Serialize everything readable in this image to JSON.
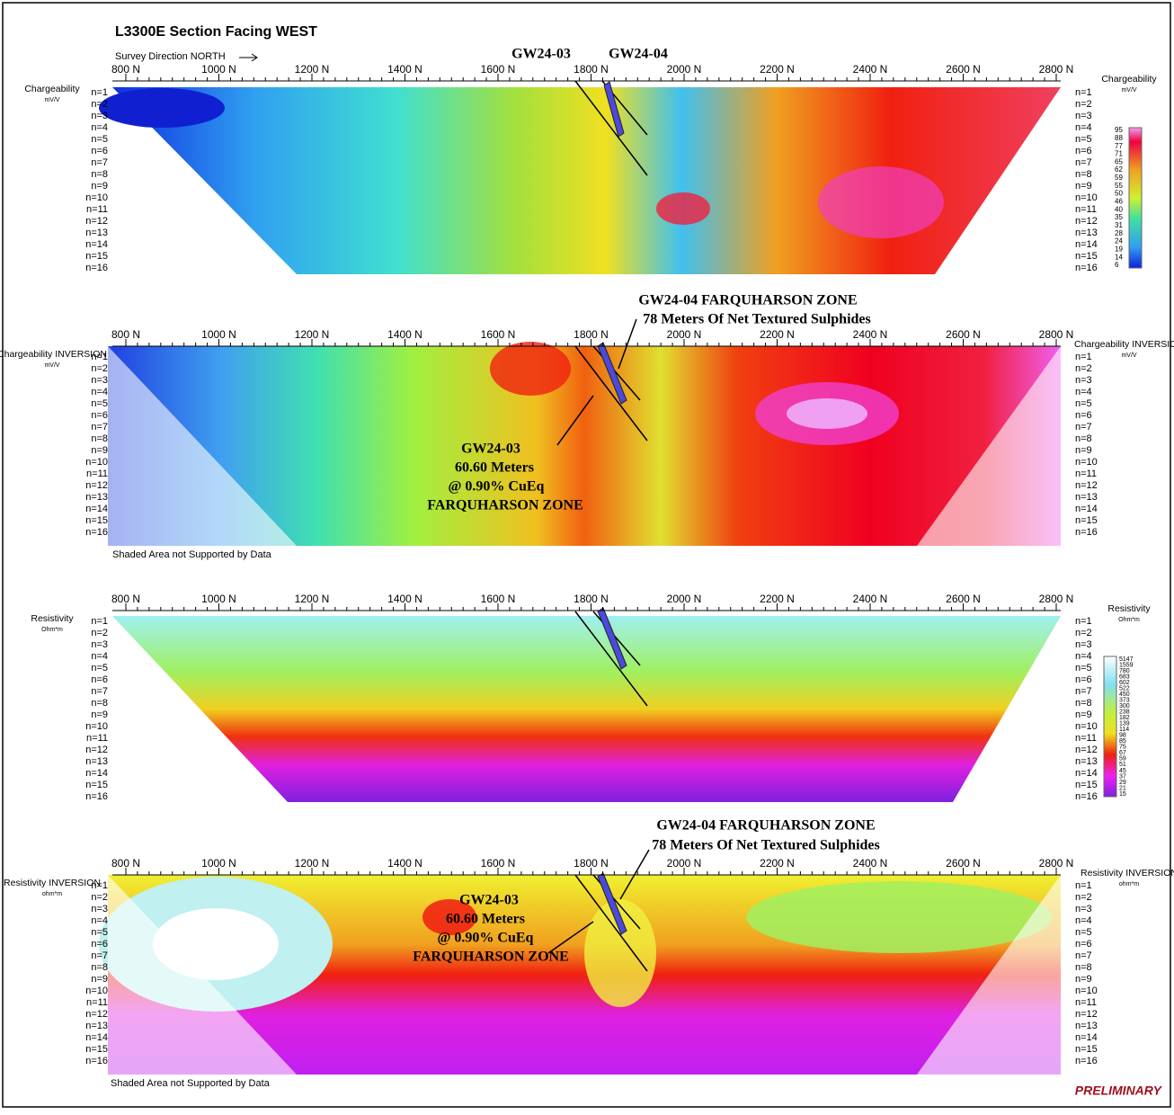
{
  "title": "L3300E Section Facing WEST",
  "survey_direction": "Survey Direction NORTH",
  "preliminary": "PRELIMINARY",
  "stations": [
    {
      "value": 800,
      "label": "800 N"
    },
    {
      "value": 1000,
      "label": "1000 N"
    },
    {
      "value": 1200,
      "label": "1200 N"
    },
    {
      "value": 1400,
      "label": "1400 N"
    },
    {
      "value": 1600,
      "label": "1600 N"
    },
    {
      "value": 1800,
      "label": "1800 N"
    },
    {
      "value": 2000,
      "label": "2000 N"
    },
    {
      "value": 2200,
      "label": "2200 N"
    },
    {
      "value": 2400,
      "label": "2400 N"
    },
    {
      "value": 2600,
      "label": "2600 N"
    },
    {
      "value": 2800,
      "label": "2800 N"
    }
  ],
  "n_levels": [
    "n=1",
    "n=2",
    "n=3",
    "n=4",
    "n=5",
    "n=6",
    "n=7",
    "n=8",
    "n=9",
    "n=10",
    "n=11",
    "n=12",
    "n=13",
    "n=14",
    "n=15",
    "n=16"
  ],
  "panels": [
    {
      "left_label": "Chargeability",
      "left_unit": "mV/V",
      "right_label": "Chargeability",
      "right_unit": "mV/V",
      "wells": [
        "GW24-03",
        "GW24-04"
      ]
    },
    {
      "left_label": "Chargeability INVERSION",
      "left_unit": "mV/V",
      "right_label": "Chargeability INVERSION",
      "right_unit": "mV/V",
      "note": "Shaded Area not Supported by Data",
      "annotations": [
        "GW24-04 FARQUHARSON ZONE",
        "78 Meters Of Net Textured Sulphides",
        "GW24-03",
        "60.60 Meters",
        "@ 0.90% CuEq",
        "FARQUHARSON ZONE"
      ]
    },
    {
      "left_label": "Resistivity",
      "left_unit": "Ohm*m",
      "right_label": "Resistivity",
      "right_unit": "Ohm*m"
    },
    {
      "left_label": "Resistivity INVERSION",
      "left_unit": "ohm*m",
      "right_label": "Resistivity INVERSION",
      "right_unit": "ohm*m",
      "note": "Shaded Area not Supported by Data",
      "annotations": [
        "GW24-04 FARQUHARSON ZONE",
        "78 Meters Of Net Textured Sulphides",
        "GW24-03",
        "60.60 Meters",
        "@ 0.90% CuEq",
        "FARQUHARSON ZONE"
      ]
    }
  ],
  "chargeability_scale": [
    95,
    88,
    77,
    71,
    65,
    62,
    59,
    55,
    50,
    46,
    40,
    35,
    31,
    28,
    24,
    19,
    14,
    6
  ],
  "resistivity_scale": [
    5147,
    1559,
    780,
    683,
    602,
    522,
    450,
    373,
    300,
    238,
    182,
    139,
    114,
    98,
    85,
    75,
    67,
    59,
    51,
    45,
    37,
    29,
    21,
    15
  ]
}
